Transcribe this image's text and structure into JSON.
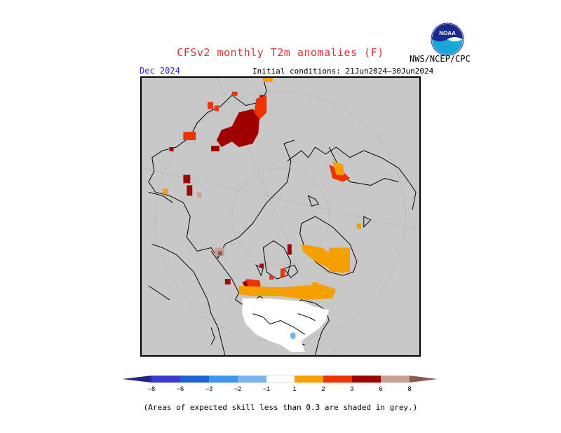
{
  "header": {
    "title": "CFSv2 monthly T2m anomalies (F)",
    "target_month": "Dec 2024",
    "initial_conditions": "Initial conditions: 21Jun2024–30Jun2024",
    "agency": "NWS/NCEP/CPC",
    "logo_text": "NOAA"
  },
  "colorbar": {
    "ticks": [
      "−8",
      "−6",
      "−3",
      "−2",
      "−1",
      "1",
      "2",
      "3",
      "6",
      "8"
    ],
    "colors": {
      "lt_m8": "#23238e",
      "m8_m6": "#3c3cd2",
      "m6_m3": "#1f64d2",
      "m3_m2": "#3c96f0",
      "m2_m1": "#78b4f0",
      "m1_1": "#ffffff",
      "p1_p2": "#f5a000",
      "p2_p3": "#f03200",
      "p3_p6": "#a00000",
      "p6_p8": "#c8a096",
      "gt_p8": "#8c5a50"
    }
  },
  "map": {
    "background_color": "#c8c8c8",
    "no_skill_note_color": "grey"
  },
  "footnote": "(Areas of expected skill less than 0.3 are shaded in grey.)"
}
